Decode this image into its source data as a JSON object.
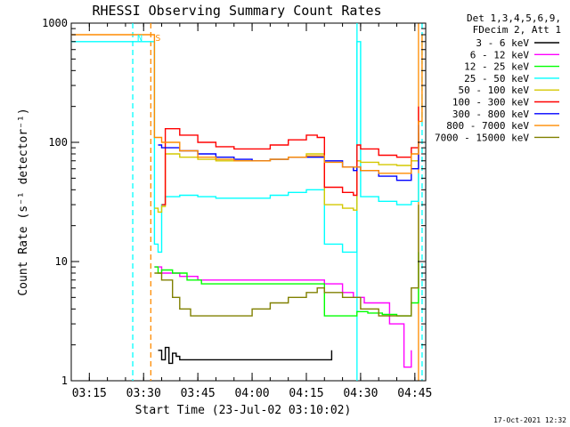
{
  "chart_data": {
    "type": "line",
    "title": "RHESSI Observing Summary Count Rates",
    "xlabel": "Start Time (23-Jul-02 03:10:02)",
    "ylabel": "Count Rate (s⁻¹ detector⁻¹)",
    "yscale": "log",
    "ylim": [
      1,
      1000
    ],
    "xlim": [
      "03:10",
      "04:48"
    ],
    "x_ticks": [
      "03:15",
      "03:30",
      "03:45",
      "04:00",
      "04:15",
      "04:30",
      "04:45"
    ],
    "y_ticks": [
      "1",
      "10",
      "100",
      "1000"
    ],
    "grid": false,
    "legend_placement": "right",
    "legend_header": [
      "Det 1,3,4,5,6,9,",
      "FDecim 2, Att 1"
    ],
    "footer_date": "17-Oct-2021 12:32",
    "markers": [
      {
        "label": "N",
        "time": "03:27",
        "color": "#00ffff"
      },
      {
        "label": "S",
        "time": "03:32",
        "color": "#ff8c00"
      }
    ],
    "vlines": [
      {
        "time": "03:27",
        "color": "#00ffff",
        "style": "dashed"
      },
      {
        "time": "03:32",
        "color": "#ff8c00",
        "style": "dashed"
      },
      {
        "time": "04:29",
        "color": "#00ffff",
        "style": "solid"
      },
      {
        "time": "04:46",
        "color": "#ff8c00",
        "style": "solid"
      },
      {
        "time": "04:47",
        "color": "#00ffff",
        "style": "dashed"
      }
    ],
    "series": [
      {
        "name": "3 - 6 keV",
        "color": "#000000",
        "x": [
          "03:34",
          "03:35",
          "03:36",
          "03:37",
          "03:38",
          "03:39",
          "03:40",
          "04:22"
        ],
        "y": [
          1.8,
          1.5,
          1.9,
          1.4,
          1.7,
          1.6,
          1.5,
          1.8
        ]
      },
      {
        "name": "6 - 12 keV",
        "color": "#ff00ff",
        "x": [
          "03:33",
          "03:35",
          "03:40",
          "03:45",
          "03:50",
          "03:55",
          "04:00",
          "04:05",
          "04:10",
          "04:15",
          "04:20",
          "04:25",
          "04:28",
          "04:31",
          "04:34",
          "04:38",
          "04:42",
          "04:44"
        ],
        "y": [
          9,
          8,
          7.5,
          7,
          7,
          7,
          7,
          7,
          7,
          7,
          6.5,
          5.5,
          5,
          4.5,
          4.5,
          3,
          1.3,
          1.8
        ]
      },
      {
        "name": "12 - 25 keV",
        "color": "#00ff00",
        "x": [
          "03:33",
          "03:34",
          "03:35",
          "03:38",
          "03:42",
          "03:46",
          "03:50",
          "03:55",
          "04:00",
          "04:05",
          "04:10",
          "04:15",
          "04:18",
          "04:20",
          "04:23",
          "04:28",
          "04:29",
          "04:32",
          "04:36",
          "04:40",
          "04:44",
          "04:46"
        ],
        "y": [
          9,
          8,
          8.5,
          8,
          7,
          6.5,
          6.5,
          6.5,
          6.5,
          6.5,
          6.5,
          6.5,
          6.5,
          3.5,
          3.5,
          3.5,
          3.8,
          3.7,
          3.6,
          3.5,
          4.5,
          12
        ]
      },
      {
        "name": "25 - 50 keV",
        "color": "#00ffff",
        "x": [
          "03:10",
          "03:28",
          "03:33",
          "03:34",
          "03:35",
          "03:36",
          "03:40",
          "03:45",
          "03:50",
          "03:55",
          "04:00",
          "04:05",
          "04:10",
          "04:15",
          "04:18",
          "04:20",
          "04:25",
          "04:28",
          "04:29",
          "04:30",
          "04:35",
          "04:40",
          "04:44",
          "04:46"
        ],
        "y": [
          700,
          700,
          14,
          12,
          30,
          35,
          36,
          35,
          34,
          34,
          34,
          36,
          38,
          40,
          40,
          14,
          12,
          12,
          700,
          35,
          32,
          30,
          32,
          55
        ]
      },
      {
        "name": "50 - 100 keV",
        "color": "#d4c800",
        "x": [
          "03:33",
          "03:34",
          "03:35",
          "03:36",
          "03:40",
          "03:45",
          "03:50",
          "03:55",
          "04:00",
          "04:05",
          "04:10",
          "04:15",
          "04:18",
          "04:20",
          "04:25",
          "04:28",
          "04:29",
          "04:30",
          "04:35",
          "04:40",
          "04:44",
          "04:46"
        ],
        "y": [
          28,
          26,
          29,
          80,
          75,
          72,
          70,
          70,
          70,
          72,
          75,
          80,
          80,
          30,
          28,
          27,
          70,
          68,
          65,
          64,
          70,
          120
        ]
      },
      {
        "name": "100 - 300 keV",
        "color": "#ff0000",
        "x": [
          "03:35",
          "03:36",
          "03:40",
          "03:45",
          "03:50",
          "03:55",
          "04:00",
          "04:05",
          "04:10",
          "04:15",
          "04:18",
          "04:20",
          "04:25",
          "04:28",
          "04:29",
          "04:30",
          "04:35",
          "04:40",
          "04:44",
          "04:46"
        ],
        "y": [
          30,
          130,
          115,
          100,
          92,
          88,
          88,
          95,
          105,
          115,
          110,
          42,
          38,
          36,
          95,
          88,
          78,
          75,
          90,
          200
        ]
      },
      {
        "name": "300 - 800 keV",
        "color": "#0000ff",
        "x": [
          "03:34",
          "03:35",
          "03:40",
          "03:45",
          "03:50",
          "03:55",
          "04:00",
          "04:05",
          "04:10",
          "04:15",
          "04:18",
          "04:20",
          "04:25",
          "04:28",
          "04:29",
          "04:30",
          "04:35",
          "04:40",
          "04:44",
          "04:46"
        ],
        "y": [
          95,
          90,
          85,
          80,
          75,
          72,
          70,
          72,
          75,
          75,
          75,
          70,
          62,
          58,
          62,
          58,
          52,
          48,
          60,
          140
        ]
      },
      {
        "name": "800 - 7000 keV",
        "color": "#ff8c00",
        "x": [
          "03:10",
          "03:32",
          "03:33",
          "03:35",
          "03:40",
          "03:45",
          "03:50",
          "03:55",
          "04:00",
          "04:05",
          "04:10",
          "04:15",
          "04:18",
          "04:20",
          "04:25",
          "04:30",
          "04:35",
          "04:40",
          "04:44",
          "04:46",
          "04:47"
        ],
        "y": [
          800,
          800,
          110,
          100,
          85,
          75,
          72,
          70,
          70,
          72,
          75,
          77,
          77,
          68,
          62,
          58,
          55,
          55,
          80,
          150,
          800
        ]
      },
      {
        "name": "7000 - 15000 keV",
        "color": "#808000",
        "x": [
          "03:33",
          "03:35",
          "03:38",
          "03:40",
          "03:43",
          "03:46",
          "03:50",
          "03:55",
          "04:00",
          "04:05",
          "04:10",
          "04:15",
          "04:18",
          "04:20",
          "04:25",
          "04:30",
          "04:35",
          "04:40",
          "04:44",
          "04:46"
        ],
        "y": [
          8,
          7,
          5,
          4,
          3.5,
          3.5,
          3.5,
          3.5,
          4,
          4.5,
          5,
          5.5,
          6,
          5.5,
          5,
          4,
          3.5,
          3.5,
          6,
          30
        ]
      }
    ]
  }
}
